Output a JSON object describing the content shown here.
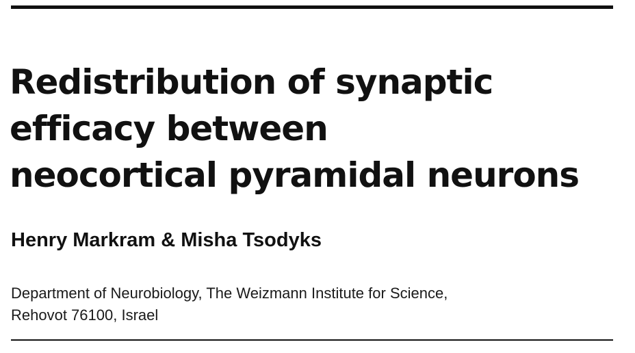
{
  "article": {
    "title_lines": [
      "Redistribution of synaptic",
      "efficacy between",
      "neocortical pyramidal neurons"
    ],
    "authors": "Henry Markram & Misha Tsodyks",
    "affiliation_lines": [
      "Department of Neurobiology, The Weizmann Institute for Science,",
      "Rehovot 76100, Israel"
    ]
  }
}
